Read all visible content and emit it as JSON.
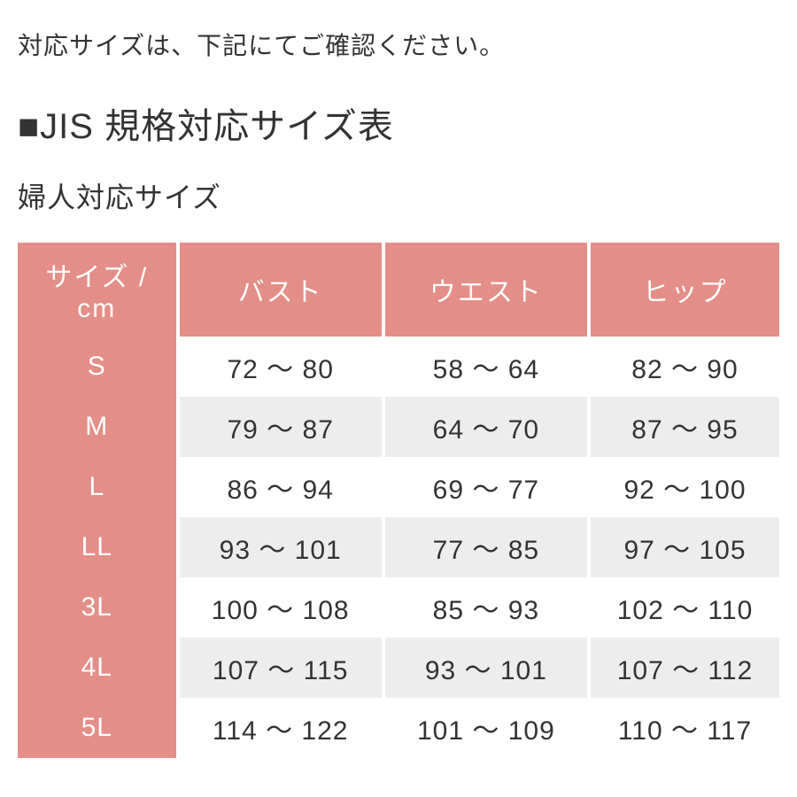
{
  "intro_text": "対応サイズは、下記にてご確認ください。",
  "heading": "■JIS 規格対応サイズ表",
  "subheading": "婦人対応サイズ",
  "table": {
    "type": "table",
    "header_bg": "#E38E88",
    "header_fg": "#ffffff",
    "row_odd_bg": "#ffffff",
    "row_even_bg": "#EDEDED",
    "size_col_bg": "#E38E88",
    "size_col_fg": "#ffffff",
    "text_color": "#333333",
    "border_color": "#ffffff",
    "header_fontsize": 30,
    "cell_fontsize": 30,
    "columns": [
      "サイズ / cm",
      "バスト",
      "ウエスト",
      "ヒップ"
    ],
    "col_widths_pct": [
      21,
      27,
      27,
      25
    ],
    "rows": [
      [
        "S",
        "72 ～ 80",
        "58 ～ 64",
        "82 ～ 90"
      ],
      [
        "M",
        "79 ～ 87",
        "64 ～ 70",
        "87 ～ 95"
      ],
      [
        "L",
        "86 ～ 94",
        "69 ～ 77",
        "92 ～ 100"
      ],
      [
        "LL",
        "93 ～ 101",
        "77 ～ 85",
        "97 ～ 105"
      ],
      [
        "3L",
        "100 ～ 108",
        "85 ～ 93",
        "102 ～ 110"
      ],
      [
        "4L",
        "107 ～ 115",
        "93 ～ 101",
        "107 ～ 112"
      ],
      [
        "5L",
        "114 ～ 122",
        "101 ～ 109",
        "110 ～ 117"
      ]
    ]
  }
}
